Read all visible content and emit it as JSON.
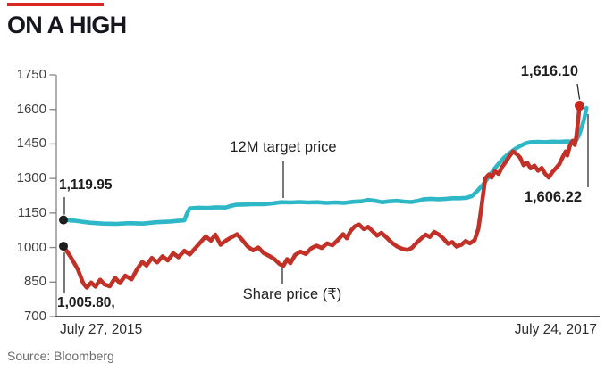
{
  "header": {
    "title": "ON A HIGH",
    "accent_color": "#d6281f"
  },
  "source": {
    "label": "Source: Bloomberg"
  },
  "chart_data": {
    "type": "line",
    "title": "ON A HIGH",
    "grid": false,
    "x_axis": {
      "start_label": "July 27, 2015",
      "end_label": "July 24, 2017"
    },
    "y_axis": {
      "min": 700,
      "max": 1750,
      "ticks": [
        1750,
        1600,
        1450,
        1300,
        1150,
        1000,
        850,
        700
      ]
    },
    "annotations": {
      "target_start": {
        "text": "1,119.95",
        "value": 1119.95,
        "t": 0
      },
      "share_start": {
        "text": "1,005.80,",
        "value": 1005.8,
        "t": 0
      },
      "share_end": {
        "text": "1,616.10",
        "value": 1616.1,
        "t": 0.969
      },
      "target_end": {
        "text": "1,606.22",
        "value": 1606.22,
        "t": 0.982
      },
      "target_label": {
        "text": "12M target price"
      },
      "share_label": {
        "text": "Share price (₹)"
      }
    },
    "series": [
      {
        "name": "12M target price",
        "color": "#2eb7c6",
        "start_value": 1119.95,
        "end_value": 1606.22,
        "points": [
          [
            0,
            1119.95
          ],
          [
            0.023,
            1116
          ],
          [
            0.049,
            1108
          ],
          [
            0.074,
            1104
          ],
          [
            0.099,
            1103
          ],
          [
            0.124,
            1106
          ],
          [
            0.149,
            1104
          ],
          [
            0.174,
            1110
          ],
          [
            0.2,
            1113
          ],
          [
            0.216,
            1116
          ],
          [
            0.227,
            1118
          ],
          [
            0.232,
            1148
          ],
          [
            0.237,
            1170
          ],
          [
            0.253,
            1173
          ],
          [
            0.27,
            1172
          ],
          [
            0.287,
            1175
          ],
          [
            0.304,
            1174
          ],
          [
            0.314,
            1181
          ],
          [
            0.324,
            1186
          ],
          [
            0.342,
            1187
          ],
          [
            0.359,
            1189
          ],
          [
            0.376,
            1188
          ],
          [
            0.393,
            1192
          ],
          [
            0.409,
            1197
          ],
          [
            0.426,
            1196
          ],
          [
            0.443,
            1198
          ],
          [
            0.46,
            1196
          ],
          [
            0.477,
            1197
          ],
          [
            0.493,
            1194
          ],
          [
            0.51,
            1196
          ],
          [
            0.527,
            1194
          ],
          [
            0.544,
            1199
          ],
          [
            0.56,
            1201
          ],
          [
            0.572,
            1207
          ],
          [
            0.586,
            1203
          ],
          [
            0.599,
            1197
          ],
          [
            0.612,
            1201
          ],
          [
            0.626,
            1203
          ],
          [
            0.639,
            1200
          ],
          [
            0.653,
            1198
          ],
          [
            0.666,
            1203
          ],
          [
            0.676,
            1210
          ],
          [
            0.69,
            1212
          ],
          [
            0.703,
            1210
          ],
          [
            0.716,
            1211
          ],
          [
            0.73,
            1214
          ],
          [
            0.743,
            1214
          ],
          [
            0.757,
            1216
          ],
          [
            0.767,
            1224
          ],
          [
            0.777,
            1246
          ],
          [
            0.787,
            1272
          ],
          [
            0.797,
            1302
          ],
          [
            0.807,
            1336
          ],
          [
            0.817,
            1364
          ],
          [
            0.827,
            1390
          ],
          [
            0.837,
            1410
          ],
          [
            0.847,
            1427
          ],
          [
            0.857,
            1441
          ],
          [
            0.867,
            1452
          ],
          [
            0.877,
            1458
          ],
          [
            0.891,
            1459
          ],
          [
            0.904,
            1458
          ],
          [
            0.918,
            1460
          ],
          [
            0.931,
            1459
          ],
          [
            0.945,
            1461
          ],
          [
            0.955,
            1460
          ],
          [
            0.963,
            1466
          ],
          [
            0.968,
            1488
          ],
          [
            0.973,
            1522
          ],
          [
            0.977,
            1552
          ],
          [
            0.98,
            1584
          ],
          [
            0.982,
            1606.22
          ]
        ]
      },
      {
        "name": "Share price (₹)",
        "color": "#c23127",
        "start_value": 1005.8,
        "end_value": 1616.1,
        "points": [
          [
            0,
            1005.8
          ],
          [
            0.013,
            962
          ],
          [
            0.027,
            905
          ],
          [
            0.037,
            845
          ],
          [
            0.044,
            826
          ],
          [
            0.052,
            848
          ],
          [
            0.06,
            830
          ],
          [
            0.069,
            860
          ],
          [
            0.077,
            840
          ],
          [
            0.087,
            832
          ],
          [
            0.097,
            868
          ],
          [
            0.106,
            845
          ],
          [
            0.116,
            878
          ],
          [
            0.128,
            862
          ],
          [
            0.138,
            905
          ],
          [
            0.148,
            938
          ],
          [
            0.156,
            922
          ],
          [
            0.166,
            955
          ],
          [
            0.176,
            935
          ],
          [
            0.186,
            962
          ],
          [
            0.196,
            944
          ],
          [
            0.206,
            975
          ],
          [
            0.216,
            958
          ],
          [
            0.227,
            986
          ],
          [
            0.237,
            970
          ],
          [
            0.247,
            996
          ],
          [
            0.257,
            1022
          ],
          [
            0.267,
            1048
          ],
          [
            0.277,
            1030
          ],
          [
            0.285,
            1056
          ],
          [
            0.295,
            1012
          ],
          [
            0.305,
            1030
          ],
          [
            0.315,
            1044
          ],
          [
            0.326,
            1058
          ],
          [
            0.336,
            1032
          ],
          [
            0.346,
            1004
          ],
          [
            0.356,
            988
          ],
          [
            0.366,
            1000
          ],
          [
            0.376,
            976
          ],
          [
            0.386,
            964
          ],
          [
            0.396,
            950
          ],
          [
            0.406,
            928
          ],
          [
            0.413,
            921
          ],
          [
            0.42,
            950
          ],
          [
            0.426,
            932
          ],
          [
            0.435,
            968
          ],
          [
            0.445,
            982
          ],
          [
            0.455,
            972
          ],
          [
            0.465,
            996
          ],
          [
            0.475,
            1008
          ],
          [
            0.485,
            998
          ],
          [
            0.495,
            1018
          ],
          [
            0.505,
            1010
          ],
          [
            0.515,
            1032
          ],
          [
            0.525,
            1058
          ],
          [
            0.532,
            1040
          ],
          [
            0.539,
            1072
          ],
          [
            0.547,
            1092
          ],
          [
            0.555,
            1100
          ],
          [
            0.564,
            1080
          ],
          [
            0.572,
            1090
          ],
          [
            0.581,
            1070
          ],
          [
            0.589,
            1052
          ],
          [
            0.597,
            1064
          ],
          [
            0.606,
            1045
          ],
          [
            0.616,
            1022
          ],
          [
            0.626,
            1005
          ],
          [
            0.636,
            994
          ],
          [
            0.646,
            990
          ],
          [
            0.654,
            998
          ],
          [
            0.663,
            1020
          ],
          [
            0.671,
            1038
          ],
          [
            0.68,
            1056
          ],
          [
            0.688,
            1046
          ],
          [
            0.696,
            1068
          ],
          [
            0.705,
            1056
          ],
          [
            0.713,
            1040
          ],
          [
            0.722,
            1016
          ],
          [
            0.73,
            1024
          ],
          [
            0.738,
            1004
          ],
          [
            0.747,
            1012
          ],
          [
            0.755,
            1028
          ],
          [
            0.763,
            1018
          ],
          [
            0.772,
            1032
          ],
          [
            0.779,
            1082
          ],
          [
            0.785,
            1180
          ],
          [
            0.792,
            1300
          ],
          [
            0.799,
            1318
          ],
          [
            0.804,
            1304
          ],
          [
            0.81,
            1332
          ],
          [
            0.817,
            1320
          ],
          [
            0.824,
            1352
          ],
          [
            0.831,
            1374
          ],
          [
            0.837,
            1396
          ],
          [
            0.844,
            1418
          ],
          [
            0.851,
            1406
          ],
          [
            0.857,
            1392
          ],
          [
            0.864,
            1358
          ],
          [
            0.871,
            1368
          ],
          [
            0.877,
            1344
          ],
          [
            0.884,
            1356
          ],
          [
            0.891,
            1334
          ],
          [
            0.898,
            1346
          ],
          [
            0.904,
            1322
          ],
          [
            0.911,
            1304
          ],
          [
            0.918,
            1328
          ],
          [
            0.925,
            1346
          ],
          [
            0.931,
            1362
          ],
          [
            0.938,
            1396
          ],
          [
            0.943,
            1418
          ],
          [
            0.946,
            1400
          ],
          [
            0.951,
            1444
          ],
          [
            0.956,
            1464
          ],
          [
            0.96,
            1446
          ],
          [
            0.963,
            1482
          ],
          [
            0.966,
            1545
          ],
          [
            0.969,
            1616.1
          ]
        ]
      }
    ],
    "colors": {
      "target_line": "#2eb7c6",
      "share_line": "#c23127",
      "start_dots": "#1d1d1d",
      "end_dot": "#c8261f",
      "y_axis": "#8d8d8d",
      "x_axis": "#3f3f3f"
    },
    "legend_position": "inline-labels"
  }
}
